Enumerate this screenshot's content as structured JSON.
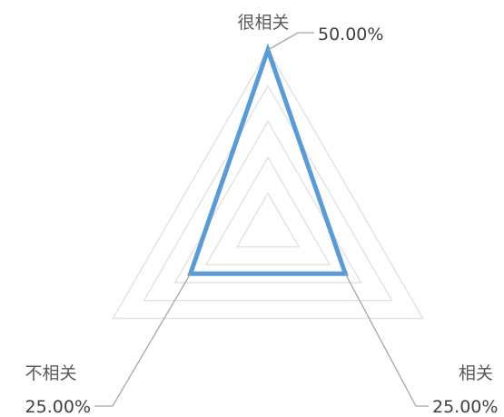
{
  "chart_data": {
    "type": "radar",
    "title": "",
    "categories": [
      "很相关",
      "相关",
      "不相关"
    ],
    "series": [
      {
        "values": [
          50.0,
          25.0,
          25.0
        ],
        "labels": [
          "50.00%",
          "25.00%",
          "25.00%"
        ]
      }
    ],
    "rlim": [
      0,
      50
    ],
    "r_ticks": [
      10,
      20,
      30,
      40,
      50
    ],
    "grid": true,
    "legend": "none",
    "colors": {
      "series": "#5b9bd5",
      "grid": "#e3e3e3",
      "leader": "#a6a6a6",
      "label": "#595959",
      "value": "#404040"
    }
  }
}
